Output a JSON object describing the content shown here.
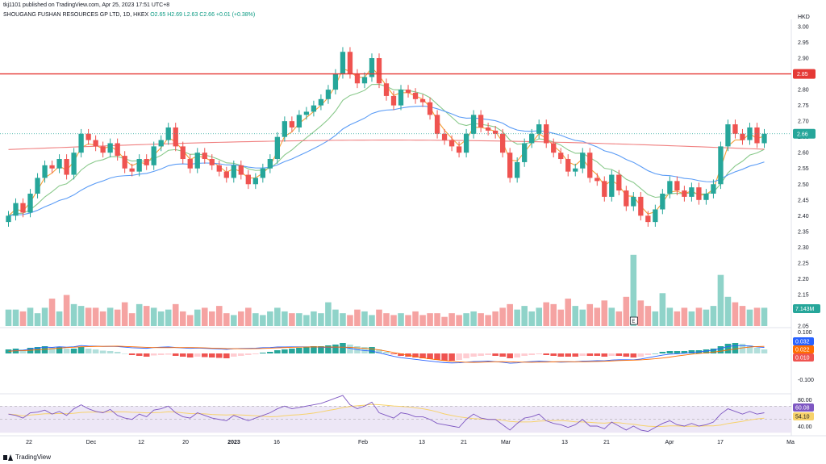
{
  "header": {
    "published": "tkj1101 published on TradingView.com, Apr 25, 2023 17:51 UTC+8",
    "symbol": "SHOUGANG FUSHAN RESOURCES GP LTD, 1D, HKEX",
    "ohlc": "O2.65 H2.69 L2.63 C2.66 +0.01 (+0.38%)",
    "currency": "HKD"
  },
  "footer": {
    "brand": "TradingView"
  },
  "colors": {
    "up": "#26a69a",
    "down": "#ef5350",
    "ema_fast": "#f5a03a",
    "ema_mid": "#89c98b",
    "ema_slow": "#5b9cf6",
    "ema_long": "#f08080",
    "resistance": "#e53935",
    "rsi": "#7e57c2",
    "rsi_ma": "#f7d26b"
  },
  "chart_data": {
    "type": "candlestick",
    "price_axis": {
      "min": 2.05,
      "max": 3.0,
      "ticks": [
        "3.00",
        "2.95",
        "2.90",
        "2.85",
        "2.80",
        "2.75",
        "2.70",
        "2.65",
        "2.60",
        "2.55",
        "2.50",
        "2.45",
        "2.40",
        "2.35",
        "2.30",
        "2.25",
        "2.20",
        "2.15",
        "2.10",
        "2.05"
      ]
    },
    "x_ticks": [
      "22",
      "Dec",
      "12",
      "20",
      "2023",
      "16",
      "Feb",
      "13",
      "21",
      "Mar",
      "13",
      "21",
      "Apr",
      "17",
      "Ma"
    ],
    "resistance_level": 2.85,
    "resistance_label": "2.85",
    "last_price_label": "2.66",
    "volume_label": "7.143M",
    "earnings_marker": "E",
    "macd_axis": {
      "ticks": [
        "0.100",
        "-0.100"
      ],
      "values": {
        "macd": "0.032",
        "signal": "0.022",
        "hist": "0.010"
      }
    },
    "rsi_axis": {
      "ticks": [
        "80.00",
        "40.00"
      ],
      "values": {
        "rsi": "60.08",
        "ma": "54.10"
      }
    },
    "closes": [
      2.4,
      2.44,
      2.41,
      2.47,
      2.52,
      2.56,
      2.55,
      2.58,
      2.53,
      2.6,
      2.66,
      2.64,
      2.62,
      2.6,
      2.63,
      2.59,
      2.55,
      2.54,
      2.58,
      2.56,
      2.62,
      2.64,
      2.68,
      2.62,
      2.58,
      2.55,
      2.6,
      2.58,
      2.56,
      2.54,
      2.52,
      2.56,
      2.53,
      2.5,
      2.52,
      2.55,
      2.58,
      2.65,
      2.7,
      2.68,
      2.72,
      2.73,
      2.75,
      2.77,
      2.8,
      2.85,
      2.92,
      2.85,
      2.82,
      2.84,
      2.9,
      2.82,
      2.78,
      2.75,
      2.8,
      2.79,
      2.77,
      2.76,
      2.72,
      2.66,
      2.64,
      2.62,
      2.6,
      2.66,
      2.72,
      2.68,
      2.67,
      2.66,
      2.6,
      2.52,
      2.57,
      2.63,
      2.66,
      2.69,
      2.63,
      2.6,
      2.58,
      2.54,
      2.55,
      2.6,
      2.52,
      2.51,
      2.46,
      2.53,
      2.48,
      2.43,
      2.46,
      2.4,
      2.38,
      2.42,
      2.47,
      2.51,
      2.48,
      2.46,
      2.49,
      2.45,
      2.47,
      2.5,
      2.62,
      2.69,
      2.66,
      2.64,
      2.68,
      2.63,
      2.66
    ],
    "volume": [
      0.9,
      0.9,
      0.8,
      1.0,
      0.7,
      1.0,
      1.5,
      0.8,
      1.7,
      1.2,
      1.1,
      1.0,
      1.0,
      0.8,
      1.0,
      0.9,
      1.3,
      0.7,
      1.2,
      1.1,
      1.0,
      0.8,
      0.9,
      1.2,
      0.8,
      0.6,
      0.9,
      1.0,
      0.8,
      1.1,
      0.7,
      0.6,
      0.8,
      1.0,
      0.7,
      0.6,
      0.8,
      1.0,
      0.8,
      0.7,
      0.7,
      0.6,
      0.8,
      0.7,
      1.3,
      0.9,
      0.7,
      0.6,
      0.9,
      0.8,
      0.6,
      0.9,
      0.7,
      0.6,
      0.7,
      0.6,
      0.8,
      0.6,
      0.7,
      0.7,
      0.5,
      0.7,
      0.6,
      0.7,
      0.8,
      0.7,
      0.6,
      0.8,
      1.0,
      1.2,
      0.9,
      1.1,
      0.8,
      1.0,
      1.3,
      1.2,
      0.9,
      1.5,
      1.1,
      0.9,
      1.2,
      1.0,
      1.4,
      1.0,
      0.8,
      1.6,
      3.9,
      1.4,
      1.1,
      0.8,
      1.8,
      1.0,
      0.8,
      1.0,
      0.8,
      1.0,
      0.9,
      1.1,
      2.8,
      1.6,
      1.3,
      1.1,
      0.9,
      1.0,
      1.0
    ],
    "macd_hist": [
      0.01,
      0.012,
      0.01,
      0.014,
      0.016,
      0.018,
      0.015,
      0.016,
      0.012,
      0.012,
      0.016,
      0.012,
      0.01,
      0.007,
      0.006,
      0.004,
      0.0,
      -0.004,
      -0.006,
      -0.008,
      -0.005,
      -0.004,
      -0.003,
      -0.006,
      -0.008,
      -0.01,
      -0.008,
      -0.009,
      -0.01,
      -0.011,
      -0.012,
      -0.008,
      -0.006,
      -0.004,
      -0.002,
      0.002,
      0.004,
      0.008,
      0.01,
      0.012,
      0.014,
      0.016,
      0.018,
      0.018,
      0.02,
      0.022,
      0.026,
      0.022,
      0.018,
      0.016,
      0.016,
      0.01,
      0.004,
      -0.002,
      -0.006,
      -0.008,
      -0.01,
      -0.012,
      -0.014,
      -0.016,
      -0.018,
      -0.018,
      -0.016,
      -0.012,
      -0.008,
      -0.006,
      -0.004,
      -0.006,
      -0.008,
      -0.012,
      -0.01,
      -0.006,
      -0.004,
      -0.002,
      -0.004,
      -0.006,
      -0.008,
      -0.008,
      -0.008,
      -0.006,
      -0.006,
      -0.006,
      -0.008,
      -0.006,
      -0.006,
      -0.008,
      -0.01,
      -0.008,
      -0.004,
      0.0,
      0.004,
      0.006,
      0.006,
      0.006,
      0.008,
      0.008,
      0.01,
      0.012,
      0.018,
      0.024,
      0.026,
      0.024,
      0.02,
      0.014,
      0.01
    ],
    "rsi": [
      58,
      56,
      52,
      60,
      61,
      64,
      58,
      62,
      56,
      66,
      72,
      66,
      62,
      60,
      65,
      56,
      52,
      50,
      58,
      54,
      64,
      66,
      70,
      60,
      54,
      52,
      60,
      56,
      52,
      50,
      48,
      56,
      52,
      48,
      52,
      56,
      60,
      66,
      70,
      66,
      68,
      70,
      72,
      74,
      78,
      82,
      86,
      72,
      66,
      70,
      76,
      60,
      56,
      52,
      60,
      58,
      54,
      54,
      50,
      44,
      42,
      40,
      38,
      50,
      58,
      52,
      50,
      50,
      42,
      34,
      44,
      52,
      54,
      58,
      48,
      44,
      42,
      38,
      42,
      50,
      40,
      40,
      36,
      46,
      40,
      34,
      40,
      34,
      32,
      38,
      44,
      48,
      42,
      40,
      44,
      40,
      42,
      46,
      58,
      66,
      62,
      58,
      62,
      58,
      60
    ]
  }
}
